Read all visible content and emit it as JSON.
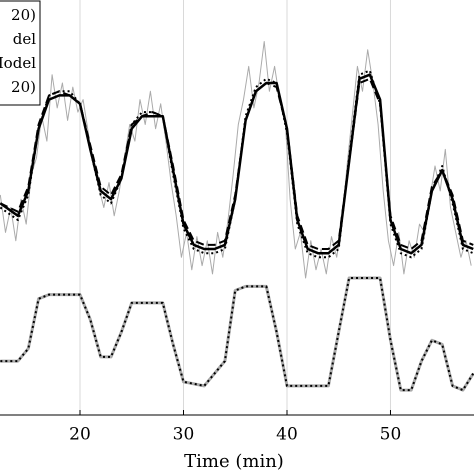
{
  "chart_data": {
    "type": "line",
    "xlabel": "Time (min)",
    "xlim": [
      12.27,
      58.07
    ],
    "xticks": [
      20,
      30,
      40,
      50
    ],
    "ylim": [
      0,
      100
    ],
    "grid": true,
    "legend_entries": [
      "20)",
      "del",
      "Model",
      "20)"
    ],
    "series": [
      {
        "color": "#aaaaaa",
        "style": "solid",
        "width": 1,
        "x": [
          12.3,
          12.8,
          13.3,
          13.8,
          14.3,
          14.8,
          15.3,
          15.8,
          16.3,
          16.8,
          17.3,
          17.8,
          18.3,
          18.8,
          19.3,
          19.8,
          20.3,
          20.8,
          21.3,
          21.8,
          22.3,
          22.8,
          23.3,
          23.8,
          24.3,
          24.8,
          25.3,
          25.8,
          26.3,
          26.8,
          27.3,
          27.8,
          28.3,
          28.8,
          29.3,
          29.8,
          30.3,
          30.8,
          31.3,
          31.8,
          32.3,
          32.8,
          33.3,
          33.8,
          34.3,
          34.8,
          35.3,
          35.8,
          36.3,
          36.8,
          37.3,
          37.8,
          38.3,
          38.8,
          39.3,
          39.8,
          40.3,
          40.8,
          41.3,
          41.8,
          42.3,
          42.8,
          43.3,
          43.8,
          44.3,
          44.8,
          45.3,
          45.8,
          46.3,
          46.8,
          47.3,
          47.8,
          48.3,
          48.8,
          49.3,
          49.8,
          50.3,
          50.8,
          51.3,
          51.8,
          52.3,
          52.8,
          53.3,
          53.8,
          54.3,
          54.8,
          55.3,
          55.8,
          56.3,
          56.8,
          57.3,
          57.8
        ],
        "values": [
          53,
          44,
          50,
          42,
          52,
          46,
          58,
          62,
          72,
          66,
          82,
          74,
          80,
          71,
          79,
          73,
          76,
          68,
          60,
          55,
          50,
          56,
          48,
          54,
          62,
          70,
          66,
          76,
          70,
          78,
          69,
          75,
          66,
          56,
          48,
          38,
          44,
          35,
          43,
          36,
          42,
          34,
          44,
          38,
          47,
          58,
          70,
          76,
          84,
          74,
          80,
          90,
          78,
          84,
          76,
          72,
          52,
          40,
          44,
          33,
          42,
          35,
          40,
          34,
          43,
          38,
          46,
          60,
          72,
          84,
          78,
          88,
          80,
          70,
          54,
          42,
          36,
          44,
          34,
          42,
          38,
          46,
          44,
          52,
          60,
          54,
          64,
          50,
          44,
          38,
          42,
          36
        ]
      },
      {
        "color": "#000000",
        "style": "dotted",
        "width": 2,
        "x": [
          12.3,
          14,
          15,
          16,
          17,
          18,
          19,
          20,
          21,
          22,
          23,
          24,
          25,
          26,
          27,
          28,
          29,
          30,
          31,
          32,
          33,
          34,
          35,
          36,
          37,
          38,
          39,
          40,
          41,
          42,
          43,
          44,
          45,
          46,
          47,
          48,
          49,
          50,
          51,
          52,
          53,
          54,
          55,
          56,
          57,
          58
        ],
        "values": [
          50,
          47,
          53,
          69,
          77,
          78,
          78,
          75,
          64,
          53,
          51,
          57,
          70,
          73,
          73,
          72,
          58,
          45,
          40,
          39,
          39,
          40,
          52,
          72,
          79,
          81,
          80,
          68,
          46,
          39,
          38,
          38,
          40,
          62,
          82,
          83,
          75,
          46,
          39,
          38,
          40,
          54,
          60,
          51,
          40,
          39
        ]
      },
      {
        "color": "#000000",
        "style": "dashed",
        "width": 2,
        "x": [
          12.3,
          14,
          15,
          16,
          17,
          18,
          19,
          20,
          21,
          22,
          23,
          24,
          25,
          26,
          27,
          28,
          29,
          30,
          31,
          32,
          33,
          34,
          35,
          36,
          37,
          38,
          39,
          40,
          41,
          42,
          43,
          44,
          45,
          46,
          47,
          48,
          49,
          50,
          51,
          52,
          53,
          54,
          55,
          56,
          57,
          58
        ],
        "values": [
          51,
          49,
          55,
          70,
          77,
          78,
          77,
          75,
          65,
          55,
          53,
          58,
          70,
          72,
          73,
          72,
          60,
          47,
          42,
          41,
          41,
          42,
          53,
          71,
          78,
          80,
          79,
          69,
          48,
          41,
          40,
          40,
          42,
          61,
          80,
          81,
          75,
          48,
          41,
          40,
          42,
          55,
          59,
          53,
          42,
          41
        ]
      },
      {
        "color": "#000000",
        "style": "solid",
        "width": 2.5,
        "x": [
          12.3,
          14,
          15,
          16,
          17,
          18,
          19,
          20,
          21,
          22,
          23,
          24,
          25,
          26,
          27,
          28,
          29,
          30,
          31,
          32,
          33,
          34,
          35,
          36,
          37,
          38,
          39,
          40,
          41,
          42,
          43,
          44,
          45,
          46,
          47,
          48,
          49,
          50,
          51,
          52,
          53,
          54,
          55,
          56,
          57,
          58
        ],
        "values": [
          51,
          48,
          54,
          69,
          76,
          77,
          77,
          75,
          64,
          54,
          52,
          57,
          69,
          72,
          72,
          72,
          59,
          46,
          41,
          40,
          40,
          41,
          52,
          71,
          78,
          80,
          80,
          69,
          47,
          40,
          39,
          39,
          41,
          61,
          81,
          82,
          76,
          47,
          40,
          39,
          41,
          54,
          59,
          52,
          41,
          40
        ]
      },
      {
        "color": "#aaaaaa",
        "style": "solid",
        "width": 3,
        "x": [
          12.3,
          14,
          15,
          16,
          17,
          20,
          21,
          22,
          23,
          24,
          25,
          28,
          29,
          30,
          32,
          34,
          35,
          36,
          38,
          39,
          40,
          44,
          45,
          46,
          49,
          50,
          51,
          52,
          53,
          54,
          55,
          56,
          57,
          58
        ],
        "values": [
          13,
          13,
          16,
          28,
          29,
          29,
          23,
          14,
          14,
          20,
          27,
          27,
          17,
          8,
          7,
          13,
          30,
          31,
          31,
          20,
          7,
          7,
          20,
          33,
          33,
          18,
          6,
          6,
          13,
          18,
          17,
          7,
          6,
          10
        ]
      },
      {
        "color": "#000000",
        "style": "dotted",
        "width": 2,
        "x": [
          12.3,
          14,
          15,
          16,
          17,
          20,
          21,
          22,
          23,
          24,
          25,
          28,
          29,
          30,
          32,
          34,
          35,
          36,
          38,
          39,
          40,
          44,
          45,
          46,
          49,
          50,
          51,
          52,
          53,
          54,
          55,
          56,
          57,
          58
        ],
        "values": [
          13,
          13,
          16,
          28,
          29,
          29,
          23,
          14,
          14,
          20,
          27,
          27,
          17,
          8,
          7,
          13,
          30,
          31,
          31,
          20,
          7,
          7,
          20,
          33,
          33,
          18,
          6,
          6,
          13,
          18,
          17,
          7,
          6,
          10
        ]
      }
    ]
  }
}
